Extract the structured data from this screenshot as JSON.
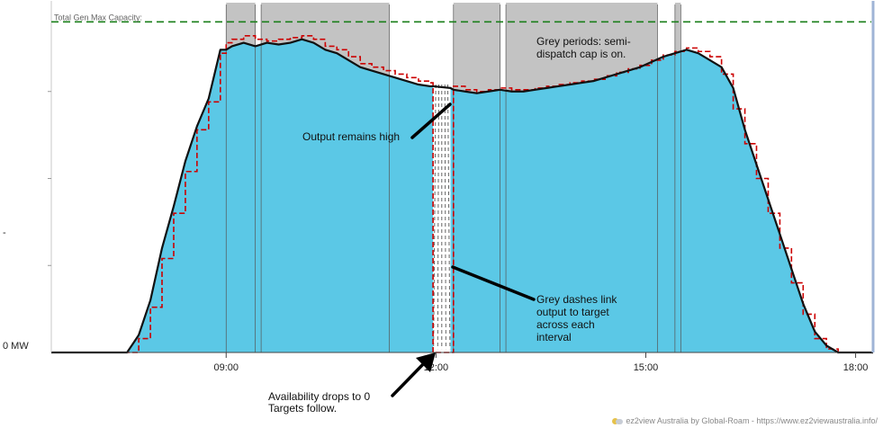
{
  "chart_data": {
    "type": "area",
    "x_unit": "hours",
    "x_range": [
      6.5,
      18.25
    ],
    "y_range": [
      0,
      1.0
    ],
    "y_tick_labels": [
      {
        "value": 0,
        "label": "0 MW"
      },
      {
        "value": 0.325,
        "label": "-"
      }
    ],
    "x_tick_labels": [
      {
        "value": 9.0,
        "label": "09:00"
      },
      {
        "value": 12.0,
        "label": "12:00"
      },
      {
        "value": 15.0,
        "label": "15:00"
      },
      {
        "value": 18.0,
        "label": "18:00"
      }
    ],
    "capacity_line": {
      "label": "Total Gen Max Capacity:",
      "value": 0.95,
      "color": "#1a7f1a"
    },
    "semi_dispatch_cap_periods": [
      [
        9.0,
        9.417
      ],
      [
        9.5,
        11.333
      ],
      [
        12.25,
        12.917
      ],
      [
        13.0,
        15.167
      ],
      [
        15.417,
        15.5
      ]
    ],
    "availability_drop": [
      11.958,
      12.208
    ],
    "series": [
      {
        "role": "output_area",
        "color": "#5bc8e6",
        "x": [
          6.5,
          7.583,
          7.75,
          7.917,
          8.083,
          8.25,
          8.417,
          8.583,
          8.75,
          8.917,
          9.0,
          9.083,
          9.25,
          9.417,
          9.583,
          9.75,
          9.917,
          10.083,
          10.25,
          10.417,
          10.583,
          10.75,
          10.917,
          11.083,
          11.25,
          11.417,
          11.583,
          11.75,
          11.917,
          11.958,
          12.208,
          12.25,
          12.417,
          12.583,
          12.75,
          12.917,
          13.083,
          13.25,
          13.417,
          13.583,
          13.75,
          13.917,
          14.083,
          14.25,
          14.417,
          14.583,
          14.75,
          14.917,
          15.083,
          15.25,
          15.417,
          15.583,
          15.75,
          15.917,
          16.083,
          16.25,
          16.417,
          16.583,
          16.75,
          16.917,
          17.083,
          17.25,
          17.417,
          17.583,
          17.75,
          17.917,
          18.25
        ],
        "values": [
          0,
          0,
          0.05,
          0.15,
          0.3,
          0.42,
          0.55,
          0.65,
          0.73,
          0.87,
          0.87,
          0.88,
          0.89,
          0.88,
          0.89,
          0.885,
          0.89,
          0.9,
          0.89,
          0.87,
          0.86,
          0.84,
          0.82,
          0.81,
          0.8,
          0.79,
          0.78,
          0.77,
          0.765,
          0.765,
          0.76,
          0.755,
          0.75,
          0.745,
          0.75,
          0.755,
          0.75,
          0.75,
          0.755,
          0.76,
          0.765,
          0.77,
          0.775,
          0.78,
          0.79,
          0.8,
          0.81,
          0.82,
          0.835,
          0.85,
          0.86,
          0.87,
          0.86,
          0.84,
          0.82,
          0.76,
          0.64,
          0.54,
          0.44,
          0.34,
          0.24,
          0.14,
          0.06,
          0.02,
          0,
          0,
          0
        ]
      },
      {
        "role": "target_line",
        "color": "#cc0000",
        "x": [
          6.5,
          7.583,
          7.75,
          7.917,
          8.083,
          8.25,
          8.417,
          8.583,
          8.75,
          8.917,
          9.0,
          9.083,
          9.25,
          9.417,
          9.583,
          9.75,
          9.917,
          10.083,
          10.25,
          10.417,
          10.583,
          10.75,
          10.917,
          11.083,
          11.25,
          11.417,
          11.583,
          11.75,
          11.917,
          11.958,
          12.208,
          12.25,
          12.417,
          12.583,
          12.75,
          12.917,
          13.083,
          13.25,
          13.417,
          13.583,
          13.75,
          13.917,
          14.083,
          14.25,
          14.417,
          14.583,
          14.75,
          14.917,
          15.083,
          15.25,
          15.417,
          15.583,
          15.75,
          15.917,
          16.083,
          16.25,
          16.417,
          16.583,
          16.75,
          16.917,
          17.083,
          17.25,
          17.417,
          17.583,
          17.75,
          17.917,
          18.25
        ],
        "values": [
          0,
          0,
          0.04,
          0.13,
          0.27,
          0.4,
          0.52,
          0.64,
          0.72,
          0.86,
          0.89,
          0.9,
          0.91,
          0.9,
          0.895,
          0.9,
          0.905,
          0.91,
          0.9,
          0.88,
          0.87,
          0.85,
          0.83,
          0.82,
          0.81,
          0.8,
          0.79,
          0.78,
          0.775,
          0,
          0,
          0.765,
          0.755,
          0.75,
          0.755,
          0.76,
          0.755,
          0.755,
          0.76,
          0.765,
          0.77,
          0.775,
          0.78,
          0.785,
          0.795,
          0.805,
          0.815,
          0.825,
          0.84,
          0.855,
          0.865,
          0.875,
          0.865,
          0.85,
          0.8,
          0.7,
          0.6,
          0.5,
          0.4,
          0.3,
          0.2,
          0.11,
          0.04,
          0.01,
          0,
          0,
          0
        ]
      }
    ],
    "annotations": [
      {
        "text": "Grey periods: semi-dispatch cap is on.",
        "lines": [
          "Grey periods: semi-",
          "dispatch cap is on."
        ]
      },
      {
        "text": "Output remains high",
        "lines": [
          "Output remains high"
        ]
      },
      {
        "text": "Grey dashes link output to target across each interval",
        "lines": [
          "Grey dashes link",
          "output to target",
          "across each",
          "interval"
        ]
      },
      {
        "text": "Availability drops to 0 Targets follow.",
        "lines": [
          "Availability drops to 0",
          "Targets follow."
        ]
      }
    ]
  },
  "credit": {
    "text": "ez2view Australia by Global-Roam - https://www.ez2viewaustralia.info/"
  }
}
